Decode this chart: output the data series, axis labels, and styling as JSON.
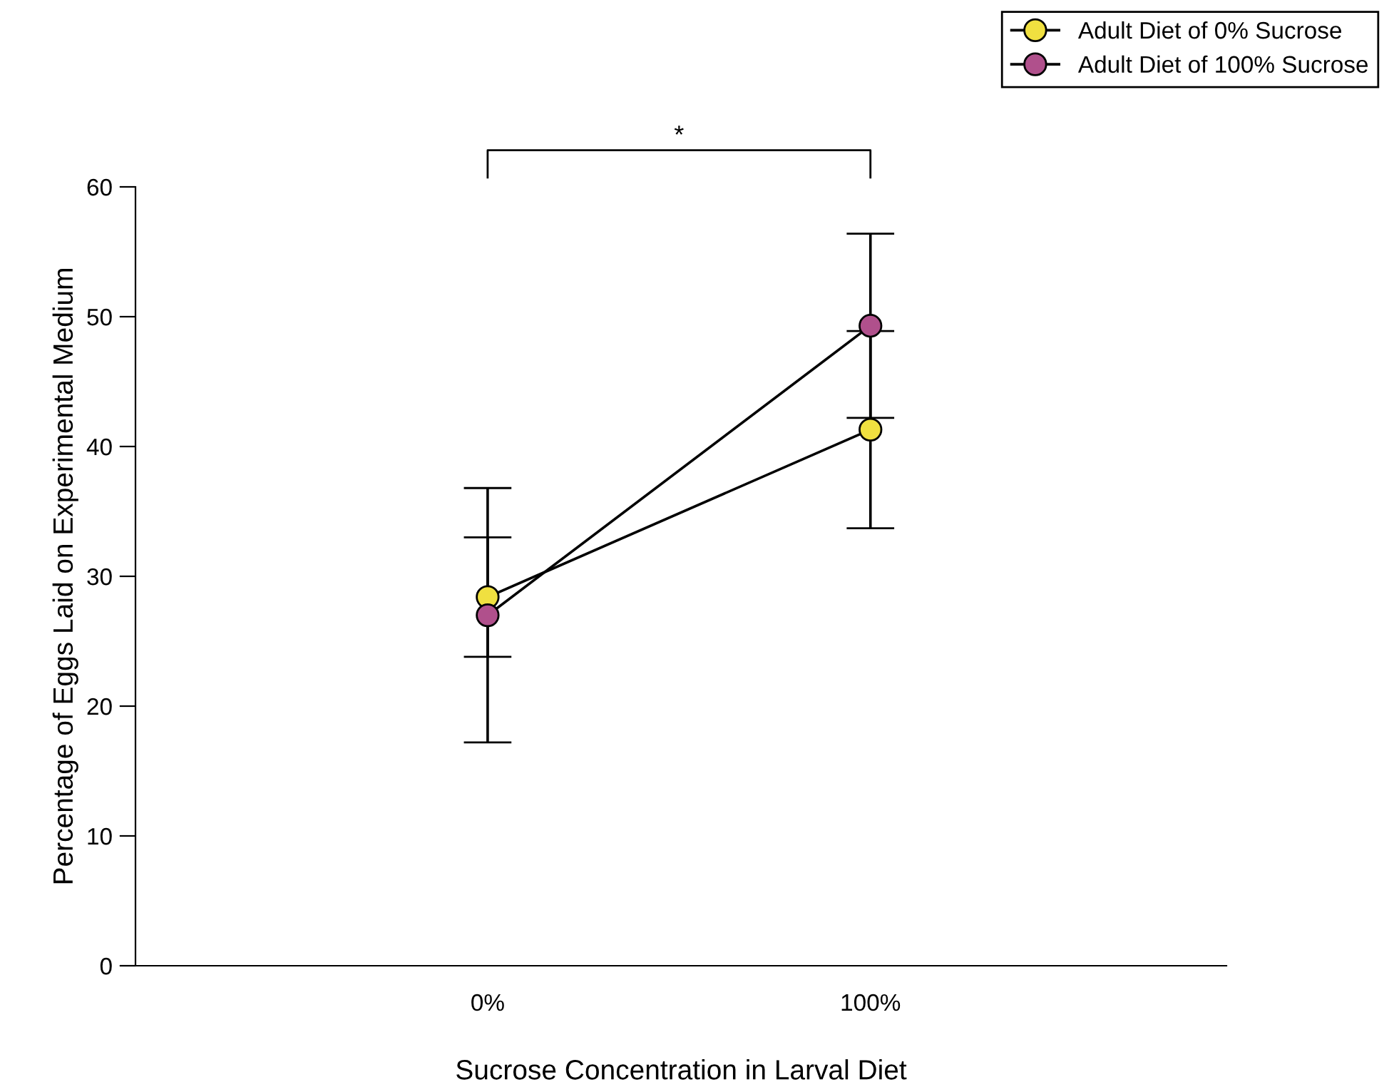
{
  "chart_data": {
    "type": "line",
    "xlabel": "Sucrose Concentration in Larval Diet",
    "ylabel": "Percentage of Eggs Laid on Experimental Medium",
    "categories": [
      "0%",
      "100%"
    ],
    "series": [
      {
        "name": "Adult Diet of 0% Sucrose",
        "color": "#f0e040",
        "values": [
          28.4,
          41.3
        ],
        "errors": [
          4.6,
          7.6
        ]
      },
      {
        "name": "Adult Diet of 100% Sucrose",
        "color": "#b0508c",
        "values": [
          27.0,
          49.3
        ],
        "errors": [
          9.8,
          7.1
        ]
      }
    ],
    "ylim": [
      0,
      60
    ],
    "yticks": [
      0,
      10,
      20,
      30,
      40,
      50,
      60
    ],
    "grid": false,
    "legend": "top right",
    "marker": "circle",
    "line_style": "solid",
    "annotations": [
      "*"
    ]
  }
}
